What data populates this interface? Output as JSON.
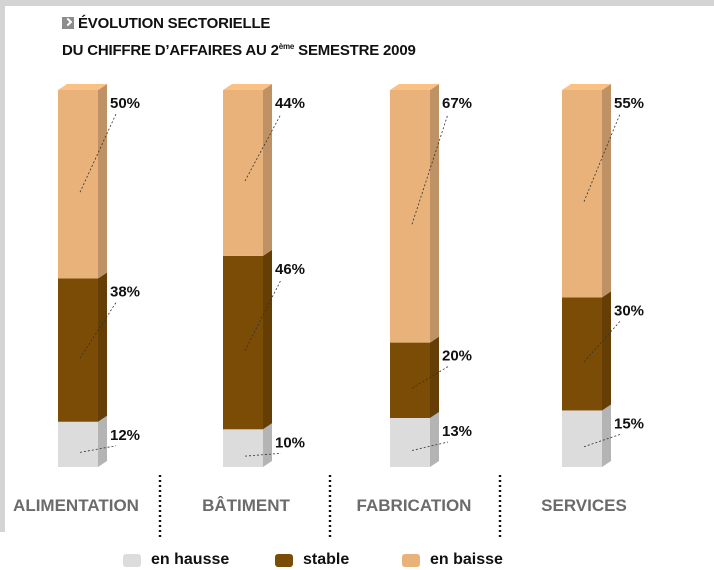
{
  "header": {
    "title": "ÉVOLUTION SECTORIELLE",
    "subtitle_prefix": "DU CHIFFRE D’AFFAIRES AU 2",
    "subtitle_sup": "ème",
    "subtitle_suffix": " SEMESTRE 2009"
  },
  "chart_data": {
    "type": "bar",
    "stacked": true,
    "title": "ÉVOLUTION SECTORIELLE DU CHIFFRE D’AFFAIRES AU 2ème SEMESTRE 2009",
    "categories": [
      "ALIMENTATION",
      "BÂTIMENT",
      "FABRICATION",
      "SERVICES"
    ],
    "series": [
      {
        "name": "en hausse",
        "values": [
          12,
          10,
          13,
          15
        ],
        "labels": [
          "12%",
          "10%",
          "13%",
          "15%"
        ],
        "color": "#dcdcdc"
      },
      {
        "name": "stable",
        "values": [
          38,
          46,
          20,
          30
        ],
        "labels": [
          "38%",
          "46%",
          "20%",
          "30%"
        ],
        "color": "#7a4c05"
      },
      {
        "name": "en baisse",
        "values": [
          50,
          44,
          67,
          55
        ],
        "labels": [
          "50%",
          "44%",
          "67%",
          "55%"
        ],
        "color": "#e8b27a"
      }
    ],
    "ylim": [
      0,
      100
    ],
    "grid": false,
    "legend_position": "bottom"
  },
  "legend": [
    {
      "label": "en hausse",
      "color": "#dcdcdc"
    },
    {
      "label": "stable",
      "color": "#7a4c05"
    },
    {
      "label": "en baisse",
      "color": "#e8b27a"
    }
  ]
}
